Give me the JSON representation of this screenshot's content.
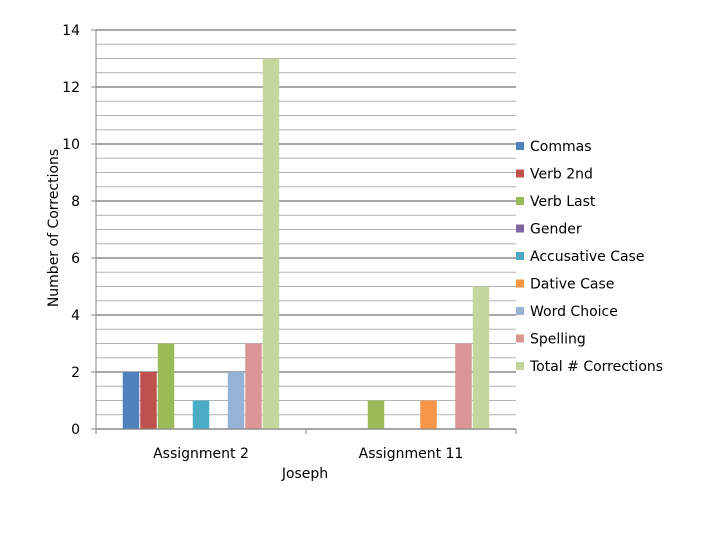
{
  "chart_data": {
    "type": "bar",
    "xlabel": "Joseph",
    "ylabel": "Number of Corrections",
    "ylim": [
      0,
      14
    ],
    "yticks": [
      0,
      2,
      4,
      6,
      8,
      10,
      12,
      14
    ],
    "minor_grid_step": 0.5,
    "grid": true,
    "legend_position": "right",
    "categories": [
      "Assignment 2",
      "Assignment 11"
    ],
    "series": [
      {
        "name": "Commas",
        "color": "#4F81BD",
        "values": [
          2,
          0
        ]
      },
      {
        "name": "Verb 2nd",
        "color": "#C0504D",
        "values": [
          2,
          0
        ]
      },
      {
        "name": "Verb Last",
        "color": "#9BBB59",
        "values": [
          3,
          1
        ]
      },
      {
        "name": "Gender",
        "color": "#8064A2",
        "values": [
          0,
          0
        ]
      },
      {
        "name": "Accusative Case",
        "color": "#4BACC6",
        "values": [
          1,
          0
        ]
      },
      {
        "name": "Dative Case",
        "color": "#F79646",
        "values": [
          0,
          1
        ]
      },
      {
        "name": "Word Choice",
        "color": "#95B3D7",
        "values": [
          2,
          0
        ]
      },
      {
        "name": "Spelling",
        "color": "#D99694",
        "values": [
          3,
          3
        ]
      },
      {
        "name": "Total # Corrections",
        "color": "#C3D69B",
        "values": [
          13,
          5
        ]
      }
    ]
  }
}
